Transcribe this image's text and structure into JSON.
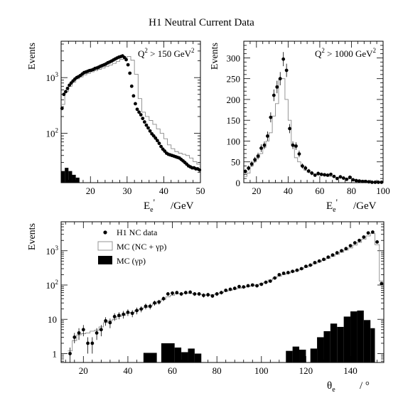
{
  "title": "H1 Neutral Current Data",
  "chart_data": [
    {
      "id": "tl",
      "type": "histogram-with-points",
      "ylabel": "Events",
      "xlabel_main": "E",
      "xlabel_sub": "e",
      "xlabel_prime": "'",
      "xlabel_unit": "/GeV",
      "annotation_pre": "Q",
      "annotation_sup": "2",
      "annotation_mid": " > 150 GeV",
      "annotation_sup2": "2",
      "x_scale": "linear",
      "y_scale": "log",
      "xlim": [
        12,
        50
      ],
      "ylim": [
        13,
        4500
      ],
      "xticks": [
        20,
        30,
        40,
        50
      ],
      "yticks_major": [
        {
          "v": 100,
          "base": "10",
          "exp": "2"
        },
        {
          "v": 1000,
          "base": "10",
          "exp": "3"
        }
      ],
      "data_points": {
        "name": "H1 NC data",
        "x": [
          12.25,
          12.75,
          13.25,
          13.75,
          14.25,
          14.75,
          15.25,
          15.75,
          16.25,
          16.75,
          17.25,
          17.75,
          18.25,
          18.75,
          19.25,
          19.75,
          20.25,
          20.75,
          21.25,
          21.75,
          22.25,
          22.75,
          23.25,
          23.75,
          24.25,
          24.75,
          25.25,
          25.75,
          26.25,
          26.75,
          27.25,
          27.75,
          28.25,
          28.75,
          29.25,
          29.75,
          30.25,
          30.75,
          31.25,
          31.75,
          32.25,
          32.75,
          33.25,
          33.75,
          34.25,
          34.75,
          35.25,
          35.75,
          36.25,
          36.75,
          37.25,
          37.75,
          38.25,
          38.75,
          39.25,
          39.75,
          40.25,
          40.75,
          41.25,
          41.75,
          42.25,
          42.75,
          43.25,
          43.75,
          44.25,
          44.75,
          45.25,
          45.75,
          46.25,
          46.75,
          47.25,
          47.75,
          48.25,
          48.75,
          49.25,
          49.75
        ],
        "y": [
          280,
          500,
          560,
          640,
          730,
          800,
          870,
          940,
          1000,
          1040,
          1090,
          1160,
          1230,
          1260,
          1300,
          1340,
          1360,
          1400,
          1460,
          1490,
          1540,
          1600,
          1650,
          1700,
          1760,
          1850,
          1910,
          1980,
          2070,
          2160,
          2250,
          2330,
          2380,
          2450,
          2300,
          2100,
          1700,
          1200,
          700,
          470,
          340,
          270,
          240,
          215,
          185,
          160,
          140,
          125,
          110,
          98,
          90,
          82,
          74,
          66,
          58,
          52,
          48,
          44,
          42,
          41,
          40,
          39,
          38,
          37,
          36,
          34,
          32,
          30,
          28,
          26,
          25,
          24,
          24,
          23,
          23,
          22
        ]
      },
      "mc_histogram": {
        "name": "MC (NC + γp)",
        "edges": [
          12,
          13,
          14,
          15,
          16,
          17,
          18,
          19,
          20,
          21,
          22,
          23,
          24,
          25,
          26,
          27,
          28,
          29,
          30,
          31,
          32,
          33,
          34,
          35,
          36,
          37,
          38,
          39,
          40,
          41,
          42,
          43,
          44,
          45,
          46,
          47,
          48,
          49,
          50
        ],
        "values": [
          330,
          560,
          700,
          830,
          950,
          1030,
          1120,
          1190,
          1270,
          1330,
          1410,
          1480,
          1580,
          1680,
          1800,
          1960,
          2120,
          2280,
          2400,
          2050,
          1150,
          420,
          240,
          200,
          170,
          145,
          120,
          100,
          80,
          62,
          53,
          47,
          44,
          42,
          40,
          36,
          31,
          28
        ]
      },
      "gp_histogram": {
        "name": "MC (γp)",
        "edges": [
          12,
          13,
          14,
          15,
          16,
          17
        ],
        "values": [
          21,
          24,
          21,
          18,
          16
        ]
      }
    },
    {
      "id": "tr",
      "type": "histogram-with-points",
      "ylabel": "Events",
      "xlabel_main": "E",
      "xlabel_sub": "e",
      "xlabel_prime": "'",
      "xlabel_unit": "/GeV",
      "annotation_pre": "Q",
      "annotation_sup": "2",
      "annotation_mid": " > 1000 GeV",
      "annotation_sup2": "2",
      "x_scale": "linear",
      "y_scale": "linear",
      "xlim": [
        12,
        100
      ],
      "ylim": [
        0,
        340
      ],
      "xticks": [
        20,
        40,
        60,
        80,
        100
      ],
      "yticks": [
        0,
        50,
        100,
        150,
        200,
        250,
        300
      ],
      "data_points": {
        "name": "H1 NC data",
        "x": [
          13,
          15,
          17,
          19,
          21,
          23,
          25,
          27,
          29,
          31,
          33,
          35,
          37,
          39,
          41,
          43,
          45,
          47,
          49,
          51,
          53,
          55,
          57,
          59,
          61,
          63,
          65,
          67,
          69,
          71,
          73,
          75,
          77,
          79,
          81,
          83,
          85,
          87,
          89,
          91,
          93,
          95,
          97,
          99
        ],
        "y": [
          27,
          35,
          45,
          55,
          64,
          83,
          90,
          112,
          157,
          210,
          230,
          250,
          297,
          270,
          130,
          90,
          88,
          69,
          40,
          35,
          28,
          23,
          18,
          22,
          20,
          19,
          18,
          20,
          15,
          10,
          14,
          11,
          8,
          13,
          7,
          5,
          4,
          3,
          3,
          2,
          1,
          1,
          1,
          1
        ],
        "err": [
          5,
          6,
          7,
          7,
          8,
          9,
          9,
          11,
          12,
          14,
          15,
          16,
          17,
          16,
          11,
          9,
          9,
          8,
          6,
          6,
          5,
          5,
          4,
          5,
          4,
          4,
          4,
          4,
          4,
          3,
          4,
          3,
          3,
          4,
          3,
          2,
          2,
          2,
          2,
          1,
          1,
          1,
          1,
          1
        ]
      },
      "mc_histogram": {
        "name": "MC (NC + γp)",
        "edges": [
          12,
          14,
          16,
          18,
          20,
          22,
          24,
          26,
          28,
          30,
          32,
          34,
          36,
          38,
          40,
          42,
          44,
          46,
          48,
          50,
          52,
          54,
          56,
          58,
          60,
          62,
          64,
          66,
          68,
          70,
          72,
          74,
          76,
          78,
          80,
          82,
          84,
          86,
          88,
          90,
          92,
          94,
          96,
          98,
          100
        ],
        "values": [
          15,
          23,
          40,
          50,
          60,
          70,
          85,
          100,
          120,
          160,
          190,
          250,
          250,
          200,
          150,
          90,
          60,
          50,
          40,
          30,
          25,
          22,
          20,
          19,
          18,
          17,
          16,
          15,
          14,
          13,
          12,
          11,
          10,
          9,
          8,
          7,
          6,
          5,
          4,
          3,
          2,
          2,
          1,
          1
        ]
      }
    },
    {
      "id": "bottom",
      "type": "histogram-with-points",
      "ylabel": "Events",
      "xlabel_main": "θ",
      "xlabel_sub": "e",
      "xlabel_unit": "/ °",
      "x_scale": "linear",
      "y_scale": "log",
      "xlim": [
        10,
        155
      ],
      "ylim": [
        0.55,
        7000
      ],
      "xticks": [
        20,
        40,
        60,
        80,
        100,
        120,
        140
      ],
      "yticks_major": [
        {
          "v": 1,
          "base": "1",
          "exp": ""
        },
        {
          "v": 10,
          "base": "10",
          "exp": ""
        },
        {
          "v": 100,
          "base": "10",
          "exp": "2"
        },
        {
          "v": 1000,
          "base": "10",
          "exp": "3"
        }
      ],
      "legend": {
        "placement": "top-left",
        "items": [
          {
            "symbol": "dot",
            "label": "H1 NC data"
          },
          {
            "symbol": "open-box",
            "label": "MC (NC + γp)"
          },
          {
            "symbol": "filled-box",
            "label": "MC (γp)"
          }
        ]
      },
      "data_points": {
        "name": "H1 NC data",
        "x": [
          14,
          16,
          18,
          20,
          22,
          24,
          26,
          28,
          30,
          32,
          34,
          36,
          38,
          40,
          42,
          44,
          46,
          48,
          50,
          52,
          54,
          56,
          58,
          60,
          62,
          64,
          66,
          68,
          70,
          72,
          74,
          76,
          78,
          80,
          82,
          84,
          86,
          88,
          90,
          92,
          94,
          96,
          98,
          100,
          102,
          104,
          106,
          108,
          110,
          112,
          114,
          116,
          118,
          120,
          122,
          124,
          126,
          128,
          130,
          132,
          134,
          136,
          138,
          140,
          142,
          144,
          146,
          148,
          150,
          152,
          154
        ],
        "y": [
          1,
          3,
          4,
          5,
          2,
          2,
          4,
          5,
          9,
          8,
          12,
          13,
          14,
          16,
          15,
          18,
          20,
          24,
          24,
          30,
          32,
          40,
          55,
          58,
          60,
          55,
          60,
          62,
          55,
          55,
          50,
          52,
          48,
          55,
          60,
          70,
          75,
          80,
          90,
          88,
          95,
          100,
          95,
          105,
          120,
          130,
          160,
          200,
          220,
          230,
          250,
          270,
          300,
          350,
          380,
          450,
          500,
          560,
          650,
          750,
          870,
          1000,
          1150,
          1400,
          1700,
          2000,
          2500,
          3300,
          3500,
          1800,
          110
        ],
        "err_low": [
          0.5,
          1,
          1.5,
          1.8,
          1,
          1,
          1.5,
          1.8,
          2.5,
          2.5,
          3,
          3,
          3.5,
          3.5,
          3.5,
          4,
          4,
          4.5,
          4.5,
          5,
          5,
          6,
          7,
          7,
          7,
          7,
          7,
          7,
          7,
          7,
          7,
          7,
          6,
          7,
          7,
          8,
          8,
          9,
          9,
          9,
          9,
          10,
          9,
          10,
          11,
          11,
          12,
          14,
          14,
          15,
          15,
          16,
          17,
          18,
          19,
          21,
          22,
          23,
          25,
          27,
          29,
          31,
          33,
          37,
          41,
          44,
          50,
          57,
          59,
          42,
          10
        ]
      },
      "mc_histogram": {
        "name": "MC (NC + γp)",
        "edges": [
          13,
          15,
          17,
          19,
          21,
          23,
          25,
          27,
          29,
          31,
          33,
          35,
          37,
          39,
          41,
          43,
          45,
          47,
          49,
          51,
          53,
          55,
          57,
          59,
          61,
          63,
          65,
          67,
          69,
          71,
          73,
          75,
          77,
          79,
          81,
          83,
          85,
          87,
          89,
          91,
          93,
          95,
          97,
          99,
          101,
          103,
          105,
          107,
          109,
          111,
          113,
          115,
          117,
          119,
          121,
          123,
          125,
          127,
          129,
          131,
          133,
          135,
          137,
          139,
          141,
          143,
          145,
          147,
          149,
          151,
          153,
          155
        ],
        "values": [
          1.2,
          2.4,
          3.5,
          3.8,
          4,
          4.5,
          4.8,
          6,
          8,
          9,
          10,
          12,
          13,
          15,
          16,
          18,
          20,
          22,
          25,
          28,
          33,
          38,
          45,
          50,
          55,
          56,
          58,
          57,
          55,
          54,
          52,
          50,
          52,
          55,
          60,
          65,
          70,
          75,
          80,
          85,
          90,
          95,
          100,
          110,
          120,
          140,
          160,
          180,
          200,
          220,
          240,
          260,
          290,
          330,
          370,
          420,
          470,
          530,
          600,
          680,
          780,
          900,
          1040,
          1200,
          1450,
          1750,
          2150,
          2700,
          3200,
          1500,
          130
        ]
      },
      "gp_histogram": {
        "name": "MC (γp)",
        "bins": [
          {
            "lo": 47,
            "hi": 53,
            "v": 1.05
          },
          {
            "lo": 55,
            "hi": 61,
            "v": 2.0
          },
          {
            "lo": 61,
            "hi": 64,
            "v": 1.5
          },
          {
            "lo": 64,
            "hi": 67,
            "v": 1.1
          },
          {
            "lo": 67,
            "hi": 70,
            "v": 1.4
          },
          {
            "lo": 70,
            "hi": 73,
            "v": 1.0
          },
          {
            "lo": 111,
            "hi": 114,
            "v": 1.2
          },
          {
            "lo": 114,
            "hi": 117,
            "v": 1.6
          },
          {
            "lo": 117,
            "hi": 120,
            "v": 1.3
          },
          {
            "lo": 122,
            "hi": 125,
            "v": 1.4
          },
          {
            "lo": 125,
            "hi": 128,
            "v": 3.0
          },
          {
            "lo": 128,
            "hi": 131,
            "v": 4.5
          },
          {
            "lo": 131,
            "hi": 134,
            "v": 7.5
          },
          {
            "lo": 134,
            "hi": 137,
            "v": 6.0
          },
          {
            "lo": 137,
            "hi": 140,
            "v": 12.0
          },
          {
            "lo": 140,
            "hi": 143,
            "v": 17.0
          },
          {
            "lo": 143,
            "hi": 146,
            "v": 18.0
          },
          {
            "lo": 146,
            "hi": 149,
            "v": 9.5
          },
          {
            "lo": 149,
            "hi": 151,
            "v": 5.5
          }
        ]
      }
    }
  ]
}
